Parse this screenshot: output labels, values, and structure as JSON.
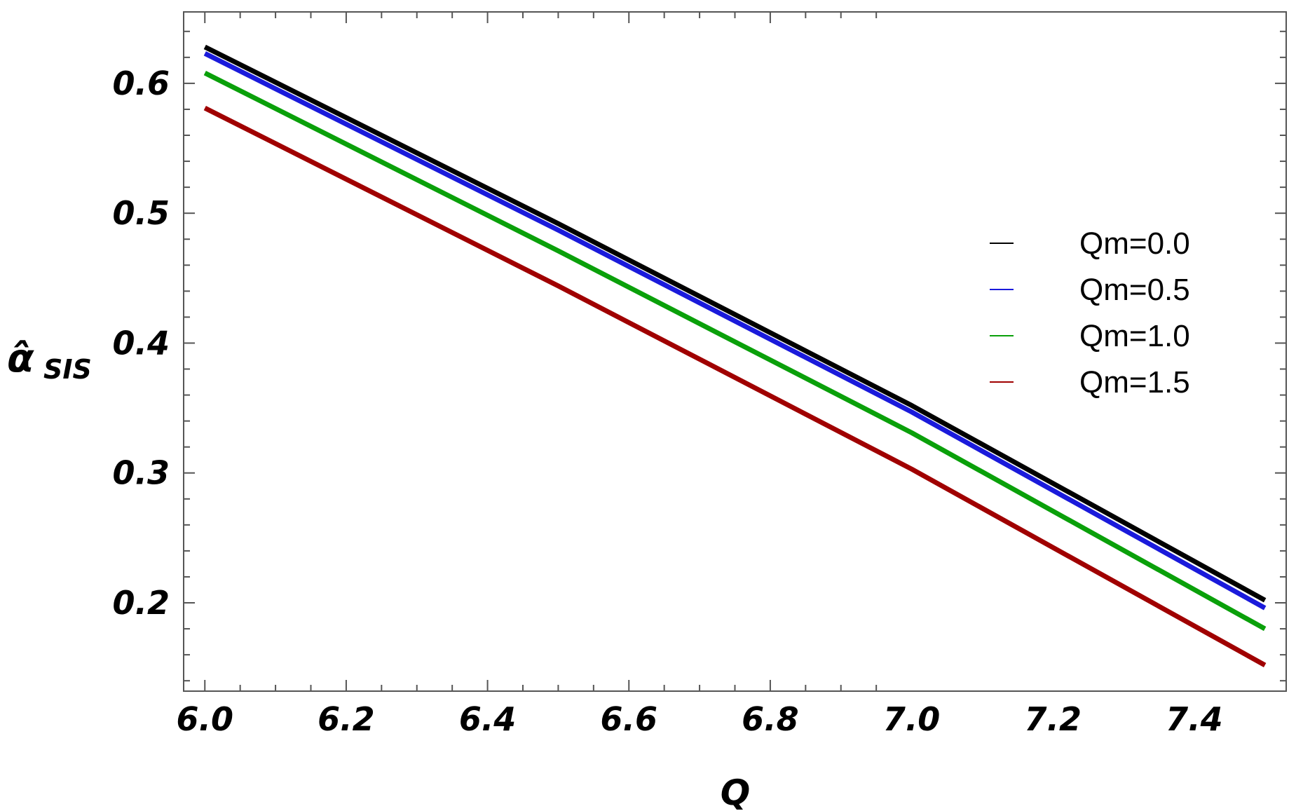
{
  "chart_data": {
    "type": "line",
    "title": "",
    "xlabel": "Q",
    "ylabel": {
      "main": "α̂",
      "sub": "SIS"
    },
    "xlim": [
      5.97,
      7.53
    ],
    "ylim": [
      0.132,
      0.655
    ],
    "xticks": [
      6.0,
      6.2,
      6.4,
      6.6,
      6.8,
      7.0,
      7.2,
      7.4
    ],
    "xtick_labels": [
      "6.0",
      "6.2",
      "6.4",
      "6.6",
      "6.8",
      "7.0",
      "7.2",
      "7.4"
    ],
    "yticks": [
      0.2,
      0.3,
      0.4,
      0.5,
      0.6
    ],
    "ytick_labels": [
      "0.2",
      "0.3",
      "0.4",
      "0.5",
      "0.6"
    ],
    "grid": false,
    "legend_position": "right",
    "x": [
      6.0,
      6.5,
      7.0,
      7.5
    ],
    "series": [
      {
        "name": "Qm=0.0",
        "color": "#000000",
        "values": [
          0.628,
          0.492,
          0.352,
          0.202
        ]
      },
      {
        "name": "Qm=0.5",
        "color": "#1a1adb",
        "values": [
          0.623,
          0.487,
          0.347,
          0.196
        ]
      },
      {
        "name": "Qm=1.0",
        "color": "#0aa00a",
        "values": [
          0.608,
          0.471,
          0.331,
          0.18
        ]
      },
      {
        "name": "Qm=1.5",
        "color": "#a00000",
        "values": [
          0.581,
          0.444,
          0.303,
          0.152
        ]
      }
    ]
  }
}
